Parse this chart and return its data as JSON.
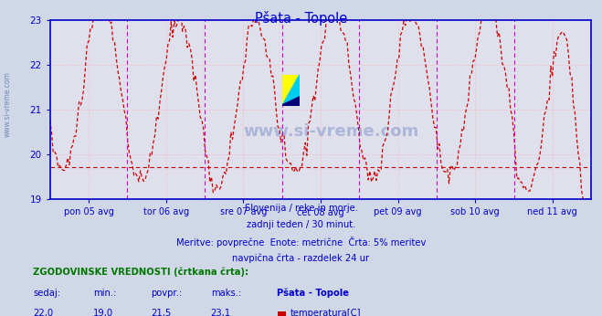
{
  "title": "Pšata - Topole",
  "bg_color": "#d0d8e8",
  "plot_bg_color": "#e0e0ec",
  "line_color": "#cc0000",
  "grid_color": "#ffaaaa",
  "vline_color": "#cc00cc",
  "hline_avg_color": "#cc0000",
  "axis_color": "#0000cc",
  "text_color": "#0000cc",
  "ymin": 19.0,
  "ymax": 23.0,
  "avg_value": 19.72,
  "num_days": 7,
  "subtitle_lines": [
    "Slovenija / reke in morje.",
    "zadnji teden / 30 minut.",
    "Meritve: povprečne  Enote: metrične  Črta: 5% meritev",
    "navpična črta - razdelek 24 ur"
  ],
  "bottom_title": "ZGODOVINSKE VREDNOSTI (črtkana črta):",
  "bottom_labels": [
    "sedaj:",
    "min.:",
    "povpr.:",
    "maks.:"
  ],
  "bottom_values": [
    "22,0",
    "19,0",
    "21,5",
    "23,1"
  ],
  "bottom_station": "Pšata - Topole",
  "bottom_param": "temperatura[C]",
  "tick_labels": [
    "pon 05 avg",
    "tor 06 avg",
    "sre 07 avg",
    "čet 08 avg",
    "pet 09 avg",
    "sob 10 avg",
    "ned 11 avg"
  ],
  "watermark": "www.si-vreme.com",
  "yticks": [
    19,
    20,
    21,
    22,
    23
  ],
  "left_watermark": "www.si-vreme.com"
}
